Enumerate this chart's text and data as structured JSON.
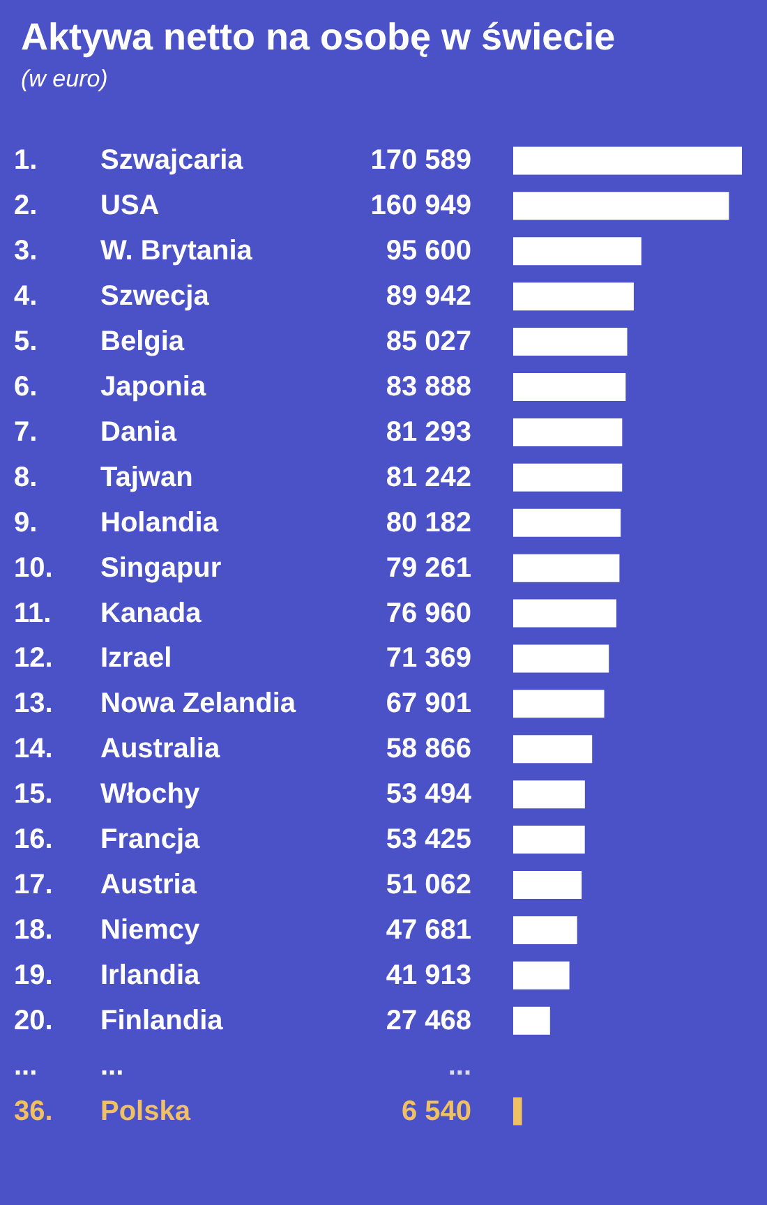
{
  "chart_data": {
    "type": "bar",
    "orientation": "horizontal",
    "title": "Aktywa netto na osobę w świecie",
    "subtitle": "(w euro)",
    "categories": [
      "Szwajcaria",
      "USA",
      "W. Brytania",
      "Szwecja",
      "Belgia",
      "Japonia",
      "Dania",
      "Tajwan",
      "Holandia",
      "Singapur",
      "Kanada",
      "Izrael",
      "Nowa Zelandia",
      "Australia",
      "Włochy",
      "Francja",
      "Austria",
      "Niemcy",
      "Irlandia",
      "Finlandia",
      "...",
      "Polska"
    ],
    "values": [
      170589,
      160949,
      95600,
      89942,
      85027,
      83888,
      81293,
      81242,
      80182,
      79261,
      76960,
      71369,
      67901,
      58866,
      53494,
      53425,
      51062,
      47681,
      41913,
      27468,
      null,
      6540
    ],
    "value_labels": [
      "170 589",
      "160 949",
      "95 600",
      "89 942",
      "85 027",
      "83 888",
      "81 293",
      "81 242",
      "80 182",
      "79 261",
      "76 960",
      "71 369",
      "67 901",
      "58 866",
      "53 494",
      "53 425",
      "51 062",
      "47 681",
      "41 913",
      "27 468",
      "...",
      "6 540"
    ],
    "colors": [
      "#ffffff",
      "#ffffff",
      "#ffffff",
      "#ffffff",
      "#ffffff",
      "#ffffff",
      "#ffffff",
      "#ffffff",
      "#ffffff",
      "#ffffff",
      "#ffffff",
      "#ffffff",
      "#ffffff",
      "#ffffff",
      "#ffffff",
      "#ffffff",
      "#ffffff",
      "#ffffff",
      "#ffffff",
      "#ffffff",
      "#ffffff",
      "#f0c064"
    ],
    "annotations": [
      "1.",
      "2.",
      "3.",
      "4.",
      "5.",
      "6.",
      "7.",
      "8.",
      "9.",
      "10.",
      "11.",
      "12.",
      "13.",
      "14.",
      "15.",
      "16.",
      "17.",
      "18.",
      "19.",
      "20.",
      "...",
      "36."
    ],
    "grid": false
  }
}
